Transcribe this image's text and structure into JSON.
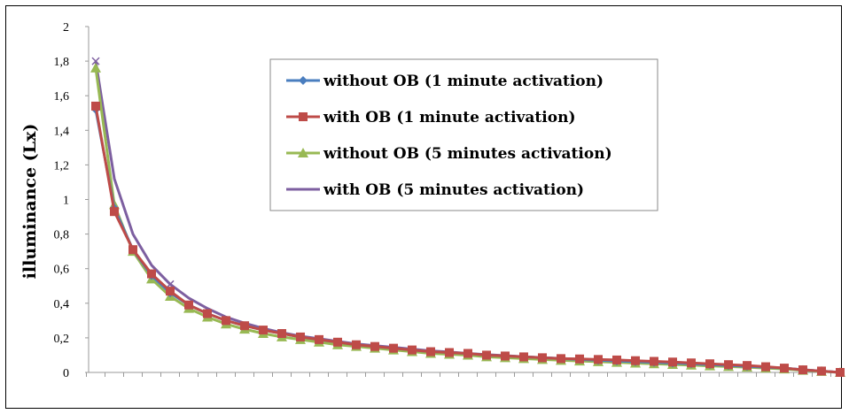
{
  "chart_data": {
    "type": "line",
    "ylabel": "illuminance (Lx)",
    "xlabel": "",
    "ylim": [
      0,
      2
    ],
    "yticks": [
      "0",
      "0,2",
      "0,4",
      "0,6",
      "0,8",
      "1",
      "1,2",
      "1,4",
      "1,6",
      "1,8",
      "2"
    ],
    "legend_position": "top-right",
    "grid": false,
    "x": [
      1,
      2,
      3,
      4,
      5,
      6,
      7,
      8,
      9,
      10,
      11,
      12,
      13,
      14,
      15,
      16,
      17,
      18,
      19,
      20,
      21,
      22,
      23,
      24,
      25,
      26,
      27,
      28,
      29,
      30,
      31,
      32,
      33,
      34,
      35,
      36,
      37,
      38,
      39,
      40,
      41
    ],
    "series": [
      {
        "name": "without OB (1 minute activation)",
        "color": "#4a7ebf",
        "marker": "diamond",
        "values": [
          1.52,
          0.95,
          0.71,
          0.56,
          0.46,
          0.39,
          0.34,
          0.3,
          0.27,
          0.245,
          0.225,
          0.205,
          0.19,
          0.175,
          0.16,
          0.15,
          0.14,
          0.13,
          0.12,
          0.115,
          0.11,
          0.1,
          0.095,
          0.09,
          0.085,
          0.08,
          0.075,
          0.07,
          0.066,
          0.062,
          0.058,
          0.054,
          0.05,
          0.045,
          0.04,
          0.035,
          0.03,
          0.025,
          0.015,
          0.008,
          0.0
        ]
      },
      {
        "name": "with OB (1 minute activation)",
        "color": "#be4b48",
        "marker": "square",
        "values": [
          1.54,
          0.93,
          0.71,
          0.57,
          0.47,
          0.39,
          0.34,
          0.3,
          0.27,
          0.245,
          0.225,
          0.205,
          0.19,
          0.175,
          0.16,
          0.15,
          0.14,
          0.13,
          0.12,
          0.115,
          0.11,
          0.1,
          0.095,
          0.09,
          0.085,
          0.08,
          0.078,
          0.075,
          0.072,
          0.068,
          0.064,
          0.06,
          0.055,
          0.05,
          0.045,
          0.04,
          0.033,
          0.025,
          0.015,
          0.008,
          0.0
        ]
      },
      {
        "name": "without OB (5 minutes activation)",
        "color": "#98b954",
        "marker": "triangle",
        "values": [
          1.76,
          0.97,
          0.7,
          0.54,
          0.44,
          0.37,
          0.32,
          0.28,
          0.25,
          0.225,
          0.205,
          0.19,
          0.175,
          0.16,
          0.15,
          0.14,
          0.13,
          0.12,
          0.11,
          0.105,
          0.1,
          0.09,
          0.085,
          0.08,
          0.075,
          0.07,
          0.066,
          0.062,
          0.058,
          0.054,
          0.05,
          0.046,
          0.042,
          0.038,
          0.034,
          0.03,
          0.025,
          0.02,
          0.012,
          0.006,
          0.0
        ]
      },
      {
        "name": "with OB (5 minutes activation)",
        "color": "#7d5fa0",
        "marker": "x",
        "values": [
          1.8,
          1.12,
          0.8,
          0.62,
          0.51,
          0.43,
          0.37,
          0.32,
          0.285,
          0.255,
          0.23,
          0.21,
          0.195,
          0.18,
          0.165,
          0.155,
          0.145,
          0.135,
          0.125,
          0.118,
          0.11,
          0.103,
          0.097,
          0.091,
          0.086,
          0.081,
          0.076,
          0.072,
          0.068,
          0.064,
          0.06,
          0.056,
          0.052,
          0.047,
          0.042,
          0.037,
          0.031,
          0.025,
          0.016,
          0.008,
          0.0
        ]
      }
    ]
  }
}
